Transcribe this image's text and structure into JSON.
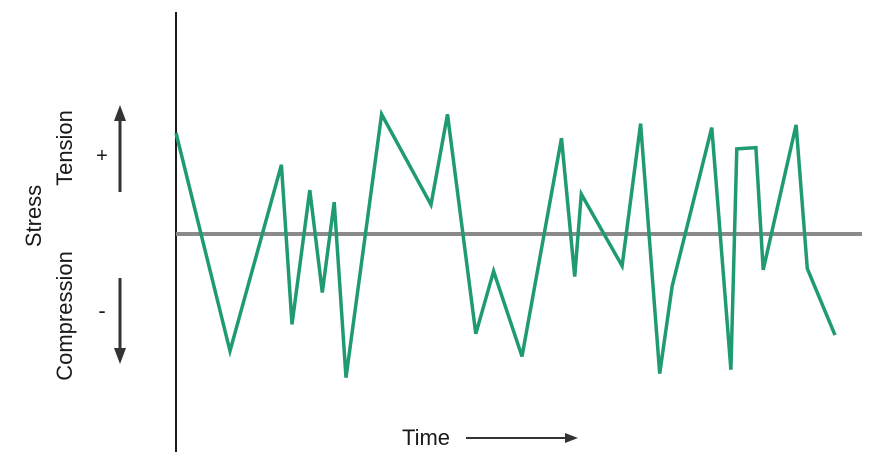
{
  "chart_data": {
    "type": "line",
    "title": "",
    "xlabel": "Time",
    "ylabel": "Stress",
    "positive_label": "Tension",
    "negative_label": "Compression",
    "positive_sign": "+",
    "negative_sign": "-",
    "ylim": [
      -1.1,
      1.4
    ],
    "xlim": [
      0,
      1
    ],
    "grid": false,
    "zero_line": true,
    "colors": {
      "series": "#1f9a73",
      "zero_line": "#8a8a8a",
      "axis": "#1a1a1a"
    },
    "series": [
      {
        "x": [
          0,
          0.082,
          0.16,
          0.176,
          0.203,
          0.222,
          0.24,
          0.258,
          0.312,
          0.387,
          0.412,
          0.455,
          0.482,
          0.525,
          0.585,
          0.605,
          0.615,
          0.677,
          0.705,
          0.734,
          0.753,
          0.813,
          0.842,
          0.851,
          0.88,
          0.891,
          0.941,
          0.958,
          1.0
        ],
        "y": [
          0.76,
          -0.88,
          0.52,
          -0.68,
          0.33,
          -0.44,
          0.24,
          -1.08,
          0.9,
          0.22,
          0.9,
          -0.75,
          -0.28,
          -0.92,
          0.72,
          -0.32,
          0.3,
          -0.24,
          0.83,
          -1.05,
          -0.39,
          0.8,
          -1.02,
          0.64,
          0.65,
          -0.27,
          0.82,
          -0.26,
          -0.76
        ]
      }
    ]
  }
}
